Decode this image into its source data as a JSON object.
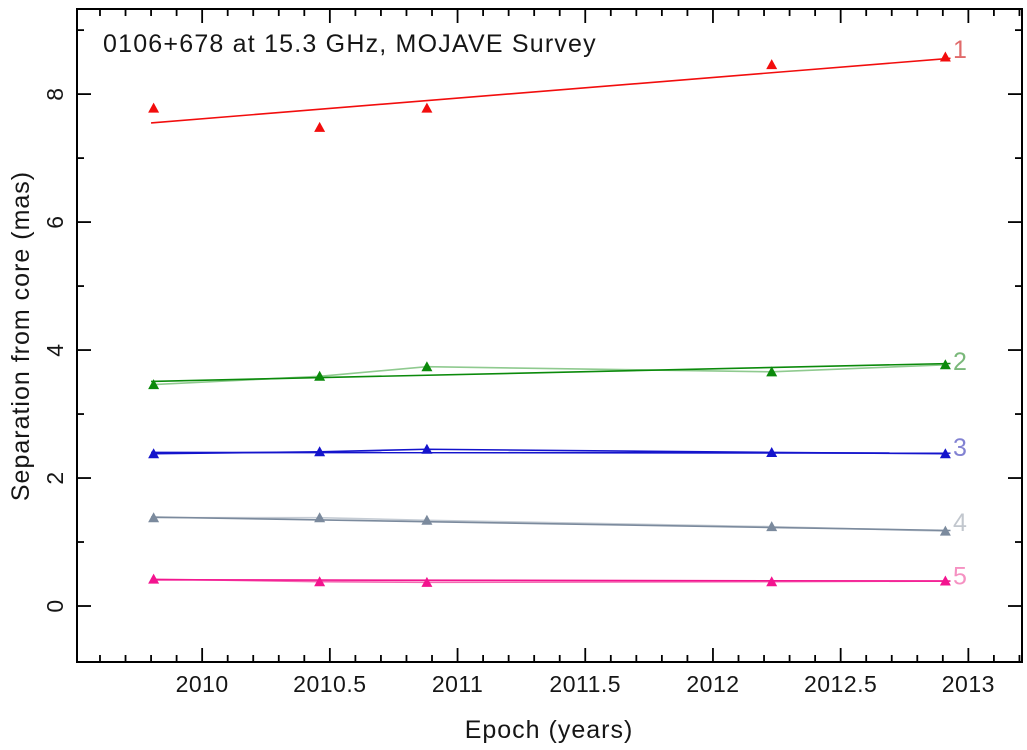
{
  "chart_data": {
    "type": "scatter",
    "title": "0106+678 at 15.3 GHz, MOJAVE Survey",
    "xlabel": "Epoch (years)",
    "ylabel": "Separation from core (mas)",
    "grid": false,
    "legend_position": "inline-right-numeric-labels",
    "marker": "filled-triangle-up",
    "axis_color": "#000000",
    "background_color": "#ffffff",
    "x_axis": {
      "range": [
        2009.51,
        2013.21
      ],
      "major_ticks": [
        2010,
        2010.5,
        2011,
        2011.5,
        2012,
        2012.5,
        2013
      ],
      "tick_labels": [
        "2010",
        "2010.5",
        "2011",
        "2011.5",
        "2012",
        "2012.5",
        "2013"
      ],
      "minor_tick_step": 0.1
    },
    "y_axis": {
      "range": [
        -0.875,
        9.33
      ],
      "major_ticks": [
        0,
        2,
        4,
        6,
        8
      ],
      "tick_labels": [
        "0",
        "2",
        "4",
        "6",
        "8"
      ],
      "minor_ticks": [
        1,
        3,
        5,
        7,
        9
      ]
    },
    "epochs": [
      2009.81,
      2010.46,
      2010.88,
      2012.23,
      2012.91
    ],
    "fit_x": [
      2009.8,
      2012.93
    ],
    "series": [
      {
        "name": "1",
        "color": "#f20d0d",
        "label_color": "#e06a6a",
        "connect_color": null,
        "values": [
          7.78,
          7.48,
          7.78,
          8.46,
          8.58
        ],
        "fit_y": [
          7.55,
          8.56
        ],
        "label_y": 8.69
      },
      {
        "name": "2",
        "color": "#0b8a0b",
        "label_color": "#7ab87a",
        "connect_color": "#8fca8f",
        "values": [
          3.46,
          3.59,
          3.74,
          3.66,
          3.77
        ],
        "fit_y": [
          3.51,
          3.79
        ],
        "label_y": 3.81
      },
      {
        "name": "3",
        "color": "#1414cc",
        "label_color": "#8282d2",
        "connect_color": "#1414cc",
        "values": [
          2.38,
          2.41,
          2.45,
          2.4,
          2.38
        ],
        "fit_y": [
          2.4,
          2.39
        ],
        "label_y": 2.47
      },
      {
        "name": "4",
        "color": "#7b8a9d",
        "label_color": "#c2c7ce",
        "connect_color": "#c5ccd4",
        "values": [
          1.38,
          1.38,
          1.34,
          1.24,
          1.17
        ],
        "fit_y": [
          1.39,
          1.18
        ],
        "label_y": 1.3
      },
      {
        "name": "5",
        "color": "#f3148f",
        "label_color": "#f591c2",
        "connect_color": "#f567b2",
        "values": [
          0.42,
          0.38,
          0.37,
          0.38,
          0.39
        ],
        "fit_y": [
          0.41,
          0.39
        ],
        "label_y": 0.46
      }
    ]
  }
}
